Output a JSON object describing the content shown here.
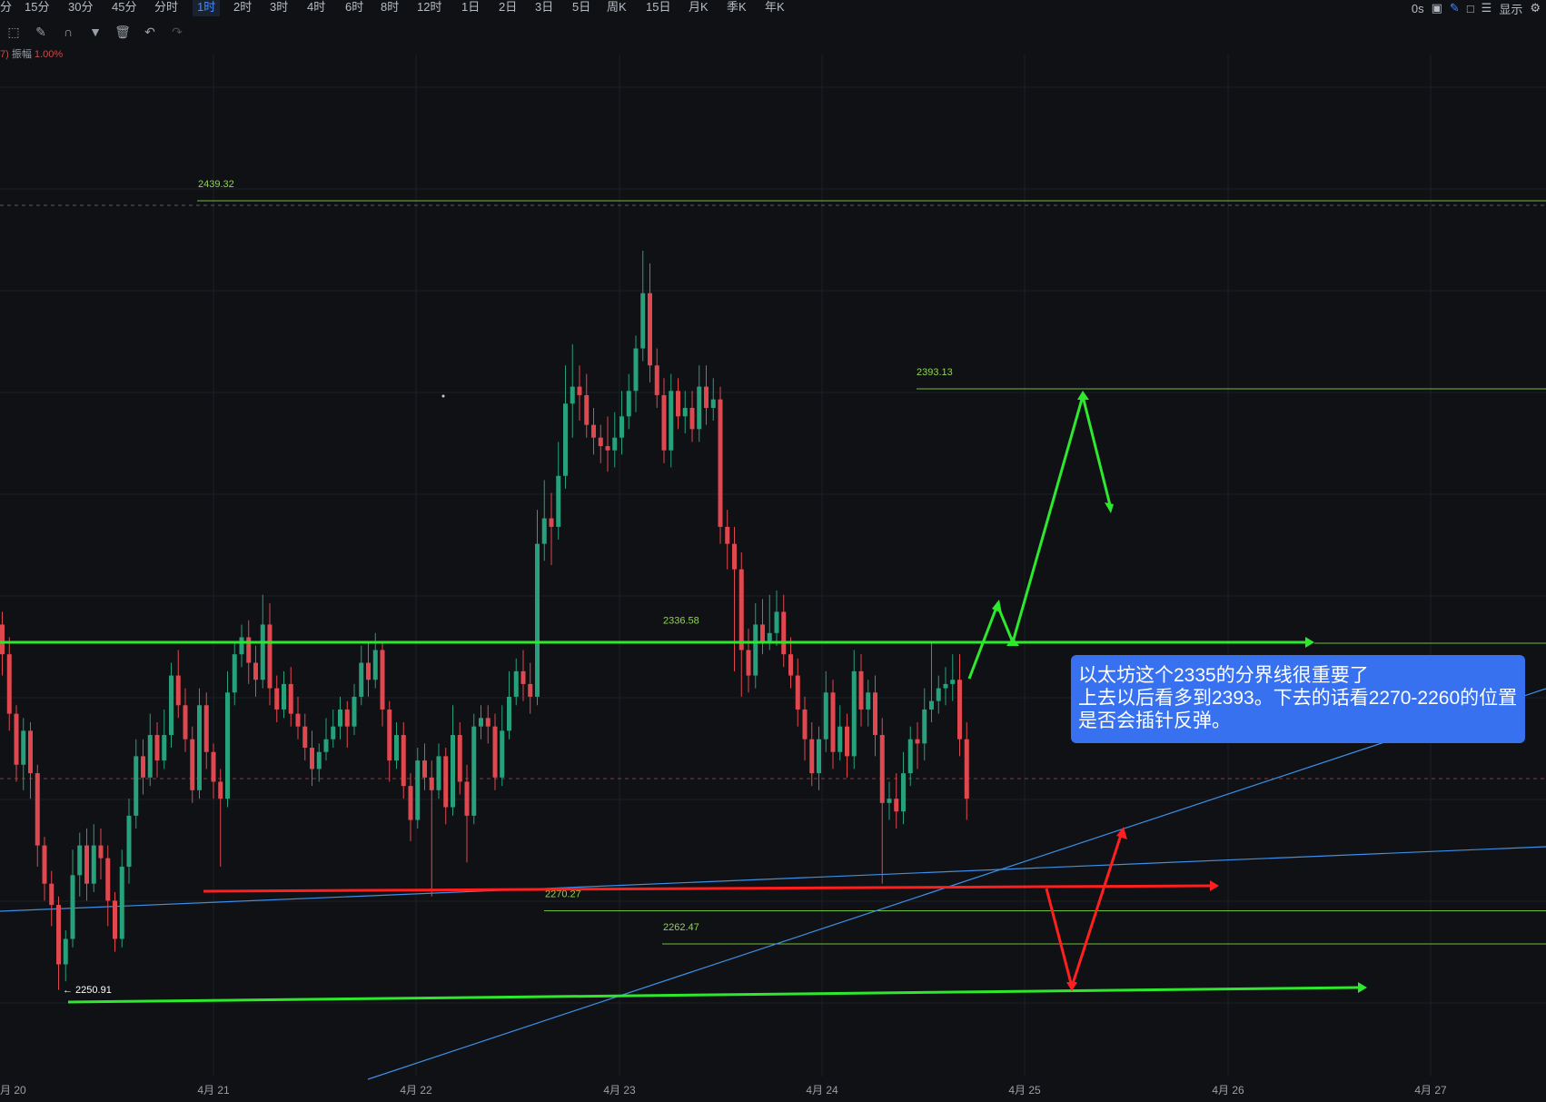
{
  "toolbar": {
    "timeframes": [
      "分",
      "15分",
      "30分",
      "45分",
      "分时",
      "1时",
      "2时",
      "3时",
      "4时",
      "6时",
      "8时",
      "12时",
      "1日",
      "2日",
      "3日",
      "5日",
      "周K",
      "15日",
      "月K",
      "季K",
      "年K"
    ],
    "active_index": 5,
    "right": {
      "countdown": "0s",
      "display_label": "显示"
    }
  },
  "drawing_tools": [
    "drawing-shape-icon",
    "drawing-settings-icon",
    "magnet-icon",
    "filter-icon",
    "trash-icon",
    "undo-icon",
    "redo-icon"
  ],
  "info": {
    "prefix": "7)",
    "label": "振幅",
    "value": "1.00%"
  },
  "colors": {
    "up": "#26a17b",
    "down": "#e0484f",
    "green_line": "#2ee82e",
    "red_line": "#ff1f1f",
    "blue_line": "#3d8fe8",
    "annotation_bg": "#3871f0"
  },
  "annotation": {
    "lines": [
      "以太坊这个2335的分界线很重要了",
      "上去以后看多到2393。下去的话看2270-2260的位置",
      "是否会插针反弹。"
    ]
  },
  "chart_data": {
    "type": "candlestick",
    "interval": "1时",
    "x_axis": {
      "ticks": [
        "月 20",
        "4月 21",
        "4月 22",
        "4月 23",
        "4月 24",
        "4月 25",
        "4月 26",
        "4月 27"
      ]
    },
    "y_range": [
      2230,
      2490
    ],
    "price_labels": [
      {
        "label": "2439.32",
        "value": 2439.32
      },
      {
        "label": "2393.13",
        "value": 2393.13
      },
      {
        "label": "2336.58",
        "value": 2336.58
      },
      {
        "label": "2270.27",
        "value": 2270.27
      },
      {
        "label": "2262.47",
        "value": 2262.47
      },
      {
        "label": "← 2250.91",
        "value": 2250.91
      }
    ],
    "candles": [
      [
        2337,
        2330,
        2340,
        2325
      ],
      [
        2330,
        2316,
        2334,
        2312
      ],
      [
        2316,
        2304,
        2318,
        2300
      ],
      [
        2304,
        2312,
        2315,
        2298
      ],
      [
        2312,
        2302,
        2314,
        2296
      ],
      [
        2302,
        2285,
        2304,
        2280
      ],
      [
        2285,
        2276,
        2287,
        2272
      ],
      [
        2276,
        2271,
        2279,
        2266
      ],
      [
        2271,
        2257,
        2273,
        2251
      ],
      [
        2257,
        2263,
        2265,
        2253
      ],
      [
        2263,
        2278,
        2284,
        2261
      ],
      [
        2278,
        2285,
        2288,
        2273
      ],
      [
        2285,
        2276,
        2289,
        2272
      ],
      [
        2276,
        2285,
        2290,
        2274
      ],
      [
        2285,
        2282,
        2289,
        2277
      ],
      [
        2282,
        2272,
        2285,
        2266
      ],
      [
        2272,
        2263,
        2274,
        2260
      ],
      [
        2263,
        2280,
        2284,
        2261
      ],
      [
        2280,
        2292,
        2296,
        2276
      ],
      [
        2292,
        2306,
        2310,
        2289
      ],
      [
        2306,
        2301,
        2310,
        2297
      ],
      [
        2301,
        2311,
        2316,
        2299
      ],
      [
        2311,
        2305,
        2314,
        2301
      ],
      [
        2305,
        2311,
        2317,
        2303
      ],
      [
        2311,
        2325,
        2328,
        2308
      ],
      [
        2325,
        2318,
        2331,
        2315
      ],
      [
        2318,
        2310,
        2322,
        2307
      ],
      [
        2310,
        2298,
        2313,
        2295
      ],
      [
        2298,
        2318,
        2322,
        2296
      ],
      [
        2318,
        2307,
        2321,
        2303
      ],
      [
        2307,
        2300,
        2309,
        2296
      ],
      [
        2300,
        2296,
        2303,
        2280
      ],
      [
        2296,
        2321,
        2326,
        2294
      ],
      [
        2321,
        2330,
        2333,
        2318
      ],
      [
        2330,
        2334,
        2337,
        2327
      ],
      [
        2334,
        2328,
        2338,
        2323
      ],
      [
        2328,
        2324,
        2332,
        2320
      ],
      [
        2324,
        2337,
        2344,
        2322
      ],
      [
        2337,
        2322,
        2342,
        2318
      ],
      [
        2322,
        2317,
        2325,
        2314
      ],
      [
        2317,
        2323,
        2326,
        2315
      ],
      [
        2323,
        2316,
        2327,
        2313
      ],
      [
        2316,
        2313,
        2320,
        2310
      ],
      [
        2313,
        2308,
        2316,
        2305
      ],
      [
        2308,
        2303,
        2312,
        2299
      ],
      [
        2303,
        2307,
        2309,
        2300
      ],
      [
        2307,
        2310,
        2315,
        2305
      ],
      [
        2310,
        2313,
        2317,
        2308
      ],
      [
        2313,
        2317,
        2320,
        2310
      ],
      [
        2317,
        2313,
        2319,
        2308
      ],
      [
        2313,
        2320,
        2323,
        2311
      ],
      [
        2320,
        2328,
        2332,
        2318
      ],
      [
        2328,
        2324,
        2333,
        2320
      ],
      [
        2324,
        2331,
        2335,
        2322
      ],
      [
        2331,
        2317,
        2333,
        2313
      ],
      [
        2317,
        2305,
        2319,
        2300
      ],
      [
        2305,
        2311,
        2314,
        2303
      ],
      [
        2311,
        2299,
        2314,
        2296
      ],
      [
        2299,
        2291,
        2302,
        2286
      ],
      [
        2291,
        2305,
        2308,
        2289
      ],
      [
        2305,
        2301,
        2309,
        2298
      ],
      [
        2301,
        2298,
        2305,
        2273
      ],
      [
        2298,
        2306,
        2309,
        2296
      ],
      [
        2306,
        2294,
        2308,
        2290
      ],
      [
        2294,
        2311,
        2318,
        2292
      ],
      [
        2311,
        2300,
        2314,
        2297
      ],
      [
        2300,
        2292,
        2304,
        2281
      ],
      [
        2292,
        2313,
        2316,
        2290
      ],
      [
        2313,
        2315,
        2318,
        2310
      ],
      [
        2315,
        2313,
        2318,
        2309
      ],
      [
        2313,
        2301,
        2316,
        2298
      ],
      [
        2301,
        2312,
        2318,
        2299
      ],
      [
        2312,
        2320,
        2326,
        2310
      ],
      [
        2320,
        2326,
        2329,
        2318
      ],
      [
        2326,
        2323,
        2331,
        2319
      ],
      [
        2323,
        2320,
        2328,
        2316
      ],
      [
        2320,
        2356,
        2364,
        2318
      ],
      [
        2356,
        2362,
        2371,
        2352
      ],
      [
        2362,
        2360,
        2368,
        2351
      ],
      [
        2360,
        2372,
        2380,
        2357
      ],
      [
        2372,
        2389,
        2398,
        2369
      ],
      [
        2389,
        2393,
        2403,
        2381
      ],
      [
        2393,
        2391,
        2398,
        2385
      ],
      [
        2391,
        2384,
        2396,
        2381
      ],
      [
        2384,
        2381,
        2388,
        2377
      ],
      [
        2381,
        2379,
        2384,
        2375
      ],
      [
        2379,
        2378,
        2386,
        2373
      ],
      [
        2378,
        2381,
        2387,
        2374
      ],
      [
        2381,
        2386,
        2392,
        2377
      ],
      [
        2386,
        2392,
        2396,
        2383
      ],
      [
        2392,
        2402,
        2405,
        2387
      ],
      [
        2402,
        2415,
        2425,
        2399
      ],
      [
        2415,
        2398,
        2422,
        2394
      ],
      [
        2398,
        2391,
        2402,
        2388
      ],
      [
        2391,
        2378,
        2395,
        2375
      ],
      [
        2378,
        2392,
        2396,
        2374
      ],
      [
        2392,
        2386,
        2395,
        2383
      ],
      [
        2386,
        2388,
        2392,
        2382
      ],
      [
        2388,
        2383,
        2392,
        2380
      ],
      [
        2383,
        2393,
        2398,
        2380
      ],
      [
        2393,
        2388,
        2398,
        2384
      ],
      [
        2388,
        2390,
        2395,
        2385
      ],
      [
        2390,
        2360,
        2393,
        2356
      ],
      [
        2360,
        2356,
        2364,
        2350
      ],
      [
        2356,
        2350,
        2360,
        2326
      ],
      [
        2350,
        2331,
        2354,
        2320
      ],
      [
        2331,
        2325,
        2336,
        2321
      ],
      [
        2325,
        2337,
        2342,
        2322
      ],
      [
        2337,
        2333,
        2343,
        2330
      ],
      [
        2333,
        2335,
        2344,
        2331
      ],
      [
        2335,
        2340,
        2345,
        2332
      ],
      [
        2340,
        2330,
        2344,
        2327
      ],
      [
        2330,
        2325,
        2334,
        2322
      ],
      [
        2325,
        2317,
        2329,
        2313
      ],
      [
        2317,
        2310,
        2320,
        2305
      ],
      [
        2310,
        2302,
        2314,
        2299
      ],
      [
        2302,
        2310,
        2313,
        2298
      ],
      [
        2310,
        2321,
        2326,
        2307
      ],
      [
        2321,
        2307,
        2324,
        2303
      ],
      [
        2307,
        2313,
        2318,
        2305
      ],
      [
        2313,
        2306,
        2316,
        2301
      ],
      [
        2306,
        2326,
        2331,
        2303
      ],
      [
        2326,
        2317,
        2330,
        2313
      ],
      [
        2317,
        2321,
        2324,
        2313
      ],
      [
        2321,
        2311,
        2325,
        2306
      ],
      [
        2311,
        2295,
        2315,
        2276
      ],
      [
        2295,
        2296,
        2300,
        2291
      ],
      [
        2296,
        2293,
        2302,
        2289
      ],
      [
        2293,
        2302,
        2307,
        2290
      ],
      [
        2302,
        2310,
        2313,
        2299
      ],
      [
        2310,
        2309,
        2314,
        2303
      ],
      [
        2309,
        2317,
        2322,
        2305
      ],
      [
        2317,
        2319,
        2333,
        2314
      ],
      [
        2319,
        2322,
        2325,
        2316
      ],
      [
        2322,
        2323,
        2327,
        2318
      ],
      [
        2323,
        2324,
        2330,
        2319
      ],
      [
        2324,
        2310,
        2330,
        2306
      ],
      [
        2310,
        2296,
        2314,
        2291
      ]
    ]
  }
}
